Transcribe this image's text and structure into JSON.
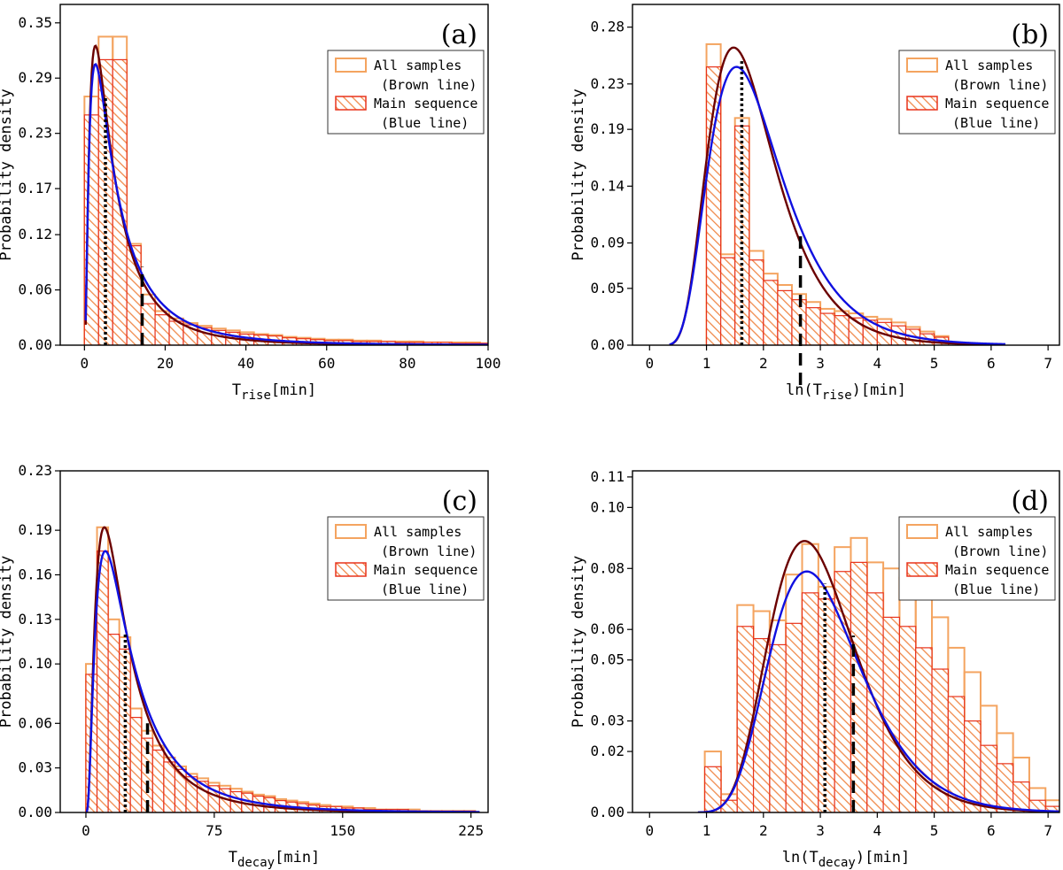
{
  "figure_title": "",
  "colors": {
    "all_samples_edge": "#f4a460",
    "main_sequence_edge": "#e8331c",
    "hatch": "#f08a4b",
    "brown_line": "#6b0000",
    "blue_line": "#1010e0",
    "marker": "#000000"
  },
  "legend": {
    "all_samples": "All samples",
    "all_samples_note": "(Brown line)",
    "main_sequence": "Main sequence",
    "main_sequence_note": "(Blue line)"
  },
  "chart_data": [
    {
      "id": "a",
      "panel_label": "(a)",
      "type": "bar",
      "xlabel_main": "T",
      "xlabel_sub": "rise",
      "xlabel_suffix": "[min]",
      "ylabel": "Probability density",
      "xlim": [
        -6,
        100
      ],
      "ylim": [
        0,
        0.37
      ],
      "xticks": [
        0,
        20,
        40,
        60,
        80,
        100
      ],
      "xtick_labels": [
        "0",
        "20",
        "40",
        "60",
        "80",
        "100"
      ],
      "yticks": [
        0,
        0.06,
        0.12,
        0.17,
        0.23,
        0.29,
        0.35
      ],
      "ytick_labels": [
        "0.00",
        "0.06",
        "0.12",
        "0.17",
        "0.23",
        "0.29",
        "0.35"
      ],
      "bins_start": 0,
      "bin_width": 3.5,
      "all_samples": [
        0.27,
        0.335,
        0.335,
        0.11,
        0.055,
        0.037,
        0.029,
        0.024,
        0.021,
        0.018,
        0.016,
        0.014,
        0.012,
        0.011,
        0.009,
        0.008,
        0.007,
        0.006,
        0.006,
        0.005,
        0.005,
        0.004,
        0.004,
        0.004,
        0.003,
        0.003,
        0.003,
        0.003,
        0.002
      ],
      "main_sequence": [
        0.25,
        0.31,
        0.31,
        0.108,
        0.045,
        0.033,
        0.026,
        0.022,
        0.019,
        0.016,
        0.014,
        0.012,
        0.011,
        0.01,
        0.008,
        0.007,
        0.006,
        0.005,
        0.005,
        0.004,
        0.004,
        0.004,
        0.003,
        0.003,
        0.003,
        0.003,
        0.002,
        0.002,
        0.002
      ],
      "curve_kind": "lognormal",
      "brown_curve": {
        "mu": 1.9,
        "sigma": 0.95,
        "scale": 1.0
      },
      "blue_curve": {
        "mu": 2.0,
        "sigma": 1.0,
        "scale": 1.0
      },
      "dotted_marker": {
        "x": 5.2,
        "y_top": 0.27
      },
      "dashed_marker": {
        "x": 14.3,
        "y_top": 0.085
      },
      "x_range_curve": [
        0.3,
        100
      ]
    },
    {
      "id": "b",
      "panel_label": "(b)",
      "type": "bar",
      "xlabel_main": "ln(T",
      "xlabel_sub": "rise",
      "xlabel_suffix": ")[min]",
      "ylabel": "Probability density",
      "xlim": [
        -0.3,
        7.2
      ],
      "ylim": [
        0,
        0.3
      ],
      "xticks": [
        0,
        1,
        2,
        3,
        4,
        5,
        6,
        7
      ],
      "xtick_labels": [
        "0",
        "1",
        "2",
        "3",
        "4",
        "5",
        "6",
        "7"
      ],
      "yticks": [
        0,
        0.05,
        0.09,
        0.14,
        0.19,
        0.23,
        0.28
      ],
      "ytick_labels": [
        "0.00",
        "0.05",
        "0.09",
        "0.14",
        "0.19",
        "0.23",
        "0.28"
      ],
      "bins_start": 1.0,
      "bin_width": 0.25,
      "all_samples": [
        0.265,
        0.08,
        0.2,
        0.083,
        0.063,
        0.053,
        0.045,
        0.038,
        0.032,
        0.03,
        0.028,
        0.025,
        0.023,
        0.02,
        0.016,
        0.012,
        0.008
      ],
      "main_sequence": [
        0.245,
        0.077,
        0.193,
        0.075,
        0.057,
        0.048,
        0.04,
        0.033,
        0.028,
        0.026,
        0.024,
        0.022,
        0.02,
        0.017,
        0.014,
        0.01,
        0.007
      ],
      "curve_kind": "lognormal",
      "brown_curve": {
        "mu": 0.55,
        "sigma": 0.4,
        "scale": 0.2
      },
      "blue_curve": {
        "mu": 0.6,
        "sigma": 0.42,
        "scale": 0.2
      },
      "dotted_marker": {
        "x": 1.62,
        "y_top": 0.25
      },
      "dashed_marker": {
        "x": 2.65,
        "y_top": 0.1
      },
      "x_range_curve": [
        0.35,
        6.25
      ]
    },
    {
      "id": "c",
      "panel_label": "(c)",
      "type": "bar",
      "xlabel_main": "T",
      "xlabel_sub": "decay",
      "xlabel_suffix": "[min]",
      "ylabel": "Probability density",
      "xlim": [
        -15,
        235
      ],
      "ylim": [
        0,
        0.23
      ],
      "xticks": [
        0,
        75,
        150,
        225
      ],
      "xtick_labels": [
        "0",
        "75",
        "150",
        "225"
      ],
      "yticks": [
        0,
        0.03,
        0.06,
        0.1,
        0.13,
        0.16,
        0.19,
        0.23
      ],
      "ytick_labels": [
        "0.00",
        "0.03",
        "0.06",
        "0.10",
        "0.13",
        "0.16",
        "0.19",
        "0.23"
      ],
      "bins_start": 0,
      "bin_width": 6.5,
      "all_samples": [
        0.1,
        0.192,
        0.13,
        0.118,
        0.07,
        0.055,
        0.045,
        0.037,
        0.031,
        0.026,
        0.023,
        0.02,
        0.018,
        0.016,
        0.014,
        0.012,
        0.011,
        0.009,
        0.008,
        0.007,
        0.006,
        0.005,
        0.004,
        0.004,
        0.003,
        0.003,
        0.002,
        0.002,
        0.002,
        0.002,
        0.001,
        0.001,
        0.001,
        0.001,
        0.001
      ],
      "main_sequence": [
        0.093,
        0.176,
        0.12,
        0.11,
        0.064,
        0.05,
        0.042,
        0.034,
        0.029,
        0.024,
        0.021,
        0.018,
        0.016,
        0.014,
        0.013,
        0.011,
        0.01,
        0.008,
        0.007,
        0.006,
        0.005,
        0.004,
        0.004,
        0.003,
        0.003,
        0.002,
        0.002,
        0.002,
        0.002,
        0.001,
        0.001,
        0.001,
        0.001,
        0.001,
        0.001
      ],
      "curve_kind": "lognormal",
      "brown_curve": {
        "mu": 3.05,
        "sigma": 0.82,
        "scale": 1.0
      },
      "blue_curve": {
        "mu": 3.15,
        "sigma": 0.85,
        "scale": 1.0
      },
      "dotted_marker": {
        "x": 23,
        "y_top": 0.12
      },
      "dashed_marker": {
        "x": 36,
        "y_top": 0.06
      },
      "x_range_curve": [
        0.5,
        230
      ]
    },
    {
      "id": "d",
      "panel_label": "(d)",
      "type": "bar",
      "xlabel_main": "ln(T",
      "xlabel_sub": "decay",
      "xlabel_suffix": ")[min]",
      "ylabel": "Probability density",
      "xlim": [
        -0.3,
        7.2
      ],
      "ylim": [
        0,
        0.112
      ],
      "xticks": [
        0,
        1,
        2,
        3,
        4,
        5,
        6,
        7
      ],
      "xtick_labels": [
        "0",
        "1",
        "2",
        "3",
        "4",
        "5",
        "6",
        "7"
      ],
      "yticks": [
        0,
        0.02,
        0.03,
        0.05,
        0.06,
        0.08,
        0.1,
        0.11
      ],
      "ytick_labels": [
        "0.00",
        "0.02",
        "0.03",
        "0.05",
        "0.06",
        "0.08",
        "0.10",
        "0.11"
      ],
      "bins_start": 0.97,
      "bin_width": 0.285,
      "all_samples": [
        0.02,
        0.006,
        0.068,
        0.066,
        0.063,
        0.078,
        0.088,
        0.074,
        0.087,
        0.09,
        0.082,
        0.08,
        0.077,
        0.07,
        0.064,
        0.054,
        0.046,
        0.035,
        0.026,
        0.018,
        0.008,
        0.004
      ],
      "main_sequence": [
        0.015,
        0.004,
        0.061,
        0.057,
        0.055,
        0.062,
        0.072,
        0.07,
        0.079,
        0.082,
        0.072,
        0.064,
        0.061,
        0.054,
        0.047,
        0.038,
        0.03,
        0.022,
        0.016,
        0.01,
        0.004,
        0.002
      ],
      "curve_kind": "lognormal",
      "brown_curve": {
        "mu": 1.08,
        "sigma": 0.28,
        "scale": 0.3
      },
      "blue_curve": {
        "mu": 1.1,
        "sigma": 0.29,
        "scale": 0.3
      },
      "dotted_marker": {
        "x": 3.08,
        "y_top": 0.075
      },
      "dashed_marker": {
        "x": 3.58,
        "y_top": 0.058
      },
      "x_range_curve": [
        0.85,
        7.2
      ]
    }
  ]
}
